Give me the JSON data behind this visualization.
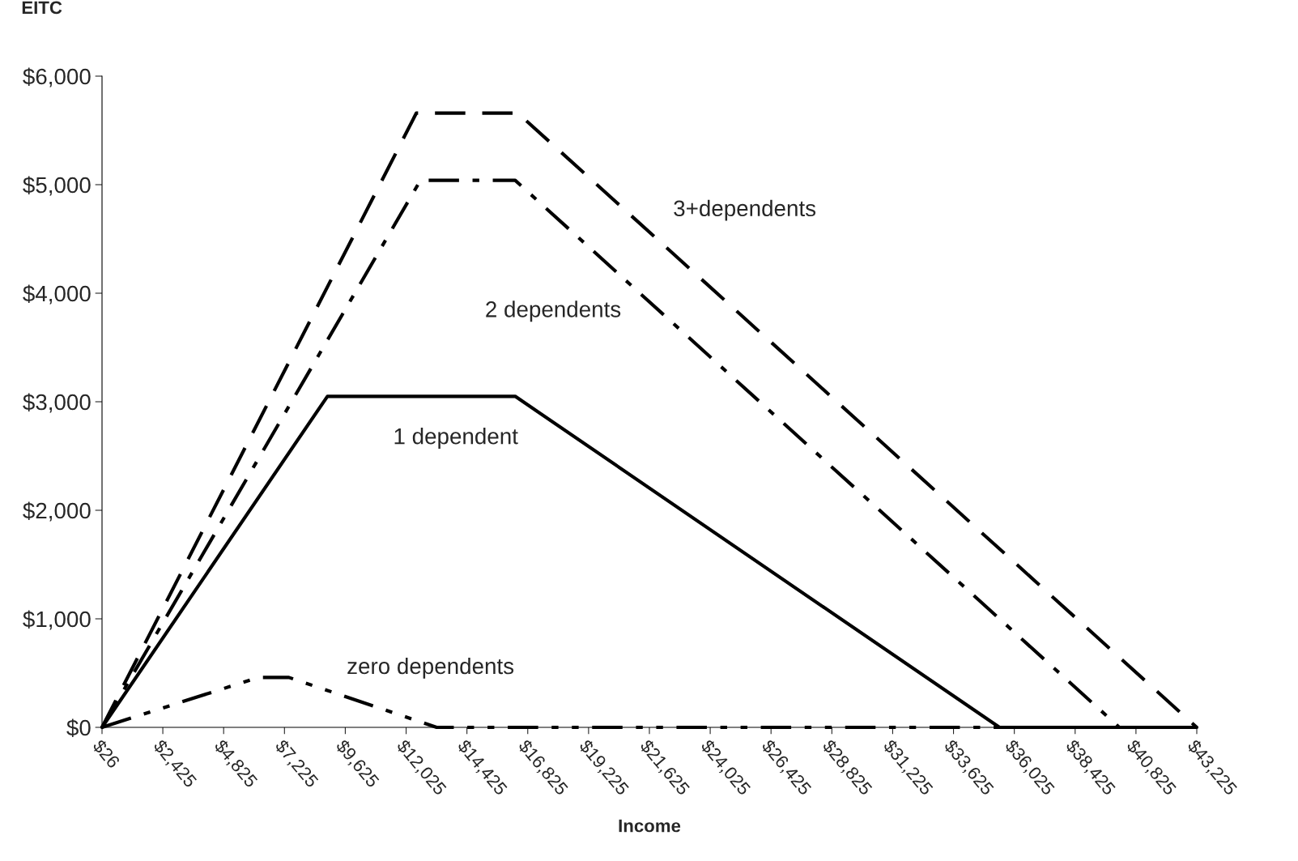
{
  "chart_data": {
    "type": "line",
    "ylabel": "EITC",
    "xlabel": "Income",
    "xlim": [
      26,
      43225
    ],
    "xticks": [
      {
        "value": 26,
        "label": "$26"
      },
      {
        "value": 2425,
        "label": "$2,425"
      },
      {
        "value": 4825,
        "label": "$4,825"
      },
      {
        "value": 7225,
        "label": "$7,225"
      },
      {
        "value": 9625,
        "label": "$9,625"
      },
      {
        "value": 12025,
        "label": "$12,025"
      },
      {
        "value": 14425,
        "label": "$14,425"
      },
      {
        "value": 16825,
        "label": "$16,825"
      },
      {
        "value": 19225,
        "label": "$19,225"
      },
      {
        "value": 21625,
        "label": "$21,625"
      },
      {
        "value": 24025,
        "label": "$24,025"
      },
      {
        "value": 26425,
        "label": "$26,425"
      },
      {
        "value": 28825,
        "label": "$28,825"
      },
      {
        "value": 31225,
        "label": "$31,225"
      },
      {
        "value": 33625,
        "label": "$33,625"
      },
      {
        "value": 36025,
        "label": "$36,025"
      },
      {
        "value": 38425,
        "label": "$38,425"
      },
      {
        "value": 40825,
        "label": "$40,825"
      },
      {
        "value": 43225,
        "label": "$43,225"
      }
    ],
    "ylim": [
      0,
      6000
    ],
    "yticks": [
      {
        "value": 0,
        "label": "$0"
      },
      {
        "value": 1000,
        "label": "$1,000"
      },
      {
        "value": 2000,
        "label": "$2,000"
      },
      {
        "value": 3000,
        "label": "$3,000"
      },
      {
        "value": 4000,
        "label": "$4,000"
      },
      {
        "value": 5000,
        "label": "$5,000"
      },
      {
        "value": 6000,
        "label": "$6,000"
      }
    ],
    "grid": false,
    "legend": false,
    "marker": "none",
    "series": [
      {
        "name": "3+dependents",
        "color": "#000000",
        "line_style": "dashed",
        "x": [
          26,
          12430,
          16430,
          43225
        ],
        "values": [
          0,
          5660,
          5660,
          0
        ]
      },
      {
        "name": "2 dependents",
        "color": "#000000",
        "line_style": "dashdot",
        "x": [
          26,
          12590,
          16330,
          40170,
          43225
        ],
        "values": [
          0,
          5040,
          5040,
          0,
          0
        ]
      },
      {
        "name": "1 dependent",
        "color": "#000000",
        "line_style": "solid",
        "x": [
          26,
          8920,
          16330,
          35440,
          43225
        ],
        "values": [
          0,
          3050,
          3050,
          0,
          0
        ]
      },
      {
        "name": "zero dependents",
        "color": "#000000",
        "line_style": "dashdotdot",
        "x": [
          26,
          6200,
          7400,
          13230,
          43225
        ],
        "values": [
          0,
          460,
          460,
          0,
          0
        ]
      }
    ]
  }
}
